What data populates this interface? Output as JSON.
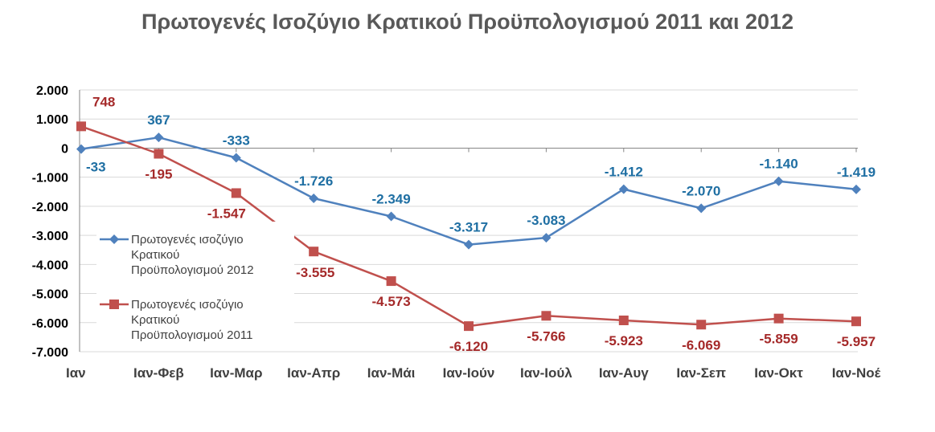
{
  "chart_data": {
    "type": "line",
    "title": "Πρωτογενές Ισοζύγιο Κρατικού Προϋπολογισμού 2011 και 2012",
    "categories": [
      "Ιαν",
      "Ιαν-Φεβ",
      "Ιαν-Μαρ",
      "Ιαν-Απρ",
      "Ιαν-Μάι",
      "Ιαν-Ιούν",
      "Ιαν-Ιούλ",
      "Ιαν-Αυγ",
      "Ιαν-Σεπ",
      "Ιαν-Οκτ",
      "Ιαν-Νοέ"
    ],
    "series": [
      {
        "name": "Πρωτογενές ισοζύγιο Κρατικού Προϋπολογισμού 2012",
        "values": [
          -33,
          367,
          -333,
          -1726,
          -2349,
          -3317,
          -3083,
          -1412,
          -2070,
          -1140,
          -1419
        ],
        "labels": [
          "-33",
          "367",
          "-333",
          "-1.726",
          "-2.349",
          "-3.317",
          "-3.083",
          "-1.412",
          "-2.070",
          "-1.140",
          "-1.419"
        ],
        "legend_lines": [
          "Πρωτογενές ισοζύγιο",
          "Κρατικού",
          "Προϋπολογισμού 2012"
        ],
        "color": "#4F81BD",
        "label_color": "#1F6FA3",
        "marker": "diamond"
      },
      {
        "name": "Πρωτογενές ισοζύγιο Κρατικού Προϋπολογισμού 2011",
        "values": [
          748,
          -195,
          -1547,
          -3555,
          -4573,
          -6120,
          -5766,
          -5923,
          -6069,
          -5859,
          -5957
        ],
        "labels": [
          "748",
          "-195",
          "-1.547",
          "-3.555",
          "-4.573",
          "-6.120",
          "-5.766",
          "-5.923",
          "-6.069",
          "-5.859",
          "-5.957"
        ],
        "legend_lines": [
          "Πρωτογενές ισοζύγιο",
          "Κρατικού",
          "Προϋπολογισμού 2011"
        ],
        "color": "#C0504D",
        "label_color": "#A52A2A",
        "marker": "square"
      }
    ],
    "yticks": [
      2000,
      1000,
      0,
      -1000,
      -2000,
      -3000,
      -4000,
      -5000,
      -6000,
      -7000
    ],
    "ytick_labels": [
      "2.000",
      "1.000",
      "0",
      "-1.000",
      "-2.000",
      "-3.000",
      "-4.000",
      "-5.000",
      "-6.000",
      "-7.000"
    ],
    "ylim": [
      -7000,
      2000
    ],
    "grid": true,
    "legend_position": "left"
  }
}
